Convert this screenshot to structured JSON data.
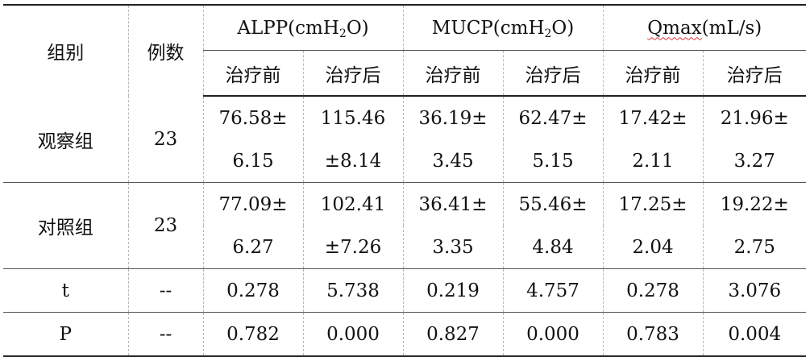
{
  "header": {
    "group": "组别",
    "count": "例数",
    "alpp": {
      "pre": "ALPP(cmH",
      "sub": "2",
      "post": "O)"
    },
    "mucp": {
      "pre": "MUCP(cmH",
      "sub": "2",
      "post": "O)"
    },
    "qmax": {
      "word": "Qmax",
      "rest": "(mL/s)"
    },
    "sub_before": "治疗前",
    "sub_after": "治疗后"
  },
  "rows": [
    {
      "group": "观察组",
      "count": "23",
      "line1": [
        "76.58±",
        "115.46",
        "36.19±",
        "62.47±",
        "17.42±",
        "21.96±"
      ],
      "line2": [
        "6.15",
        "±8.14",
        "3.45",
        "5.15",
        "2.11",
        "3.27"
      ]
    },
    {
      "group": "对照组",
      "count": "23",
      "line1": [
        "77.09±",
        "102.41",
        "36.41±",
        "55.46±",
        "17.25±",
        "19.22±"
      ],
      "line2": [
        "6.27",
        "±7.26",
        "3.35",
        "4.84",
        "2.04",
        "2.75"
      ]
    }
  ],
  "stats": [
    {
      "label": "t",
      "count": "--",
      "values": [
        "0.278",
        "5.738",
        "0.219",
        "4.757",
        "0.278",
        "3.076"
      ]
    },
    {
      "label": "P",
      "count": "--",
      "values": [
        "0.782",
        "0.000",
        "0.827",
        "0.000",
        "0.783",
        "0.004"
      ]
    }
  ]
}
